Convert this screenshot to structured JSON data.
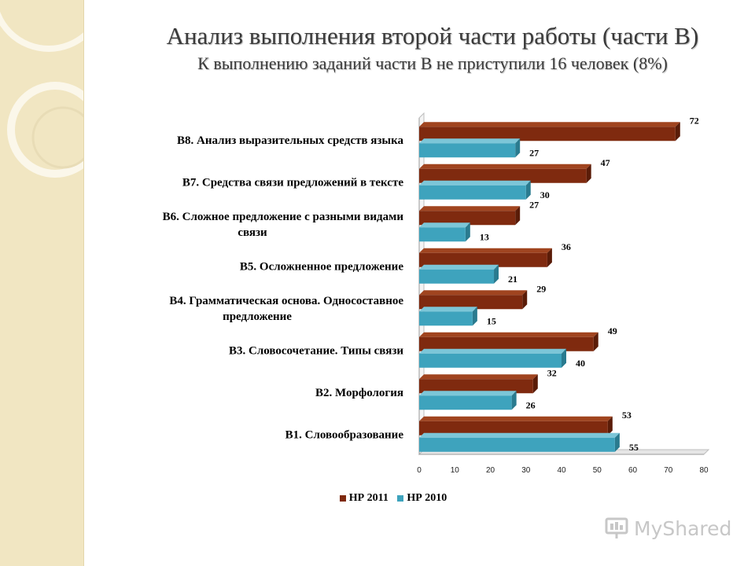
{
  "title": "Анализ выполнения второй части работы (части В)",
  "subtitle": "К выполнению заданий части В не приступили 16 человек (8%)",
  "watermark": "MyShared",
  "colors": {
    "series1": "#7f2a0f",
    "series1_top": "#a0441f",
    "series1_side": "#5a1c08",
    "series2": "#3ea3bd",
    "series2_top": "#7cc6d8",
    "series2_side": "#2a7b8f"
  },
  "chart_data": {
    "type": "bar",
    "orientation": "horizontal",
    "style": "3d",
    "categories": [
      "В8. Анализ выразительных средств языка",
      "В7. Средства связи предложений в тексте",
      "В6. Сложное предложение с разными видами связи",
      "В5. Осложненное предложение",
      "В4. Грамматическая основа. Односоставное предложение",
      "В3. Словосочетание. Типы связи",
      "В2. Морфология",
      "В1. Словообразование"
    ],
    "category_lines": [
      [
        "В8. Анализ выразительных средств языка"
      ],
      [
        "В7. Средства связи предложений в тексте"
      ],
      [
        "В6. Сложное предложение с разными видами",
        "связи"
      ],
      [
        "В5. Осложненное предложение"
      ],
      [
        "В4. Грамматическая основа. Односоставное",
        "предложение"
      ],
      [
        "В3. Словосочетание. Типы связи"
      ],
      [
        "В2. Морфология"
      ],
      [
        "В1. Словообразование"
      ]
    ],
    "series": [
      {
        "name": "НР 2011",
        "values": [
          72,
          47,
          27,
          36,
          29,
          49,
          32,
          53
        ]
      },
      {
        "name": "НР 2010",
        "values": [
          27,
          30,
          13,
          21,
          15,
          40,
          26,
          55
        ]
      }
    ],
    "xlim": [
      0,
      80
    ],
    "xticks": [
      0,
      10,
      20,
      30,
      40,
      50,
      60,
      70,
      80
    ],
    "grid": false,
    "data_labels": true,
    "legend_position": "bottom"
  }
}
